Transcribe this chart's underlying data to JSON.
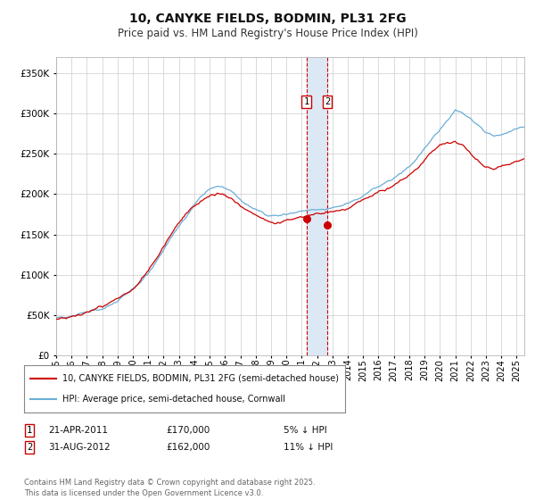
{
  "title": "10, CANYKE FIELDS, BODMIN, PL31 2FG",
  "subtitle": "Price paid vs. HM Land Registry's House Price Index (HPI)",
  "legend_line1": "10, CANYKE FIELDS, BODMIN, PL31 2FG (semi-detached house)",
  "legend_line2": "HPI: Average price, semi-detached house, Cornwall",
  "footer": "Contains HM Land Registry data © Crown copyright and database right 2025.\nThis data is licensed under the Open Government Licence v3.0.",
  "annotation1_date": "21-APR-2011",
  "annotation1_price": "£170,000",
  "annotation1_pct": "5% ↓ HPI",
  "annotation2_date": "31-AUG-2012",
  "annotation2_price": "£162,000",
  "annotation2_pct": "11% ↓ HPI",
  "sale1_year": 2011.3,
  "sale1_value": 170000,
  "sale2_year": 2012.67,
  "sale2_value": 162000,
  "hpi_color": "#6aaed6",
  "price_color": "#cc0000",
  "marker_color": "#cc0000",
  "vspan_color": "#dce9f5",
  "vline_color": "#cc0000",
  "background_color": "#ffffff",
  "grid_color": "#cccccc",
  "ylim": [
    0,
    370000
  ],
  "yticks": [
    0,
    50000,
    100000,
    150000,
    200000,
    250000,
    300000,
    350000
  ],
  "title_fontsize": 10,
  "subtitle_fontsize": 8.5
}
